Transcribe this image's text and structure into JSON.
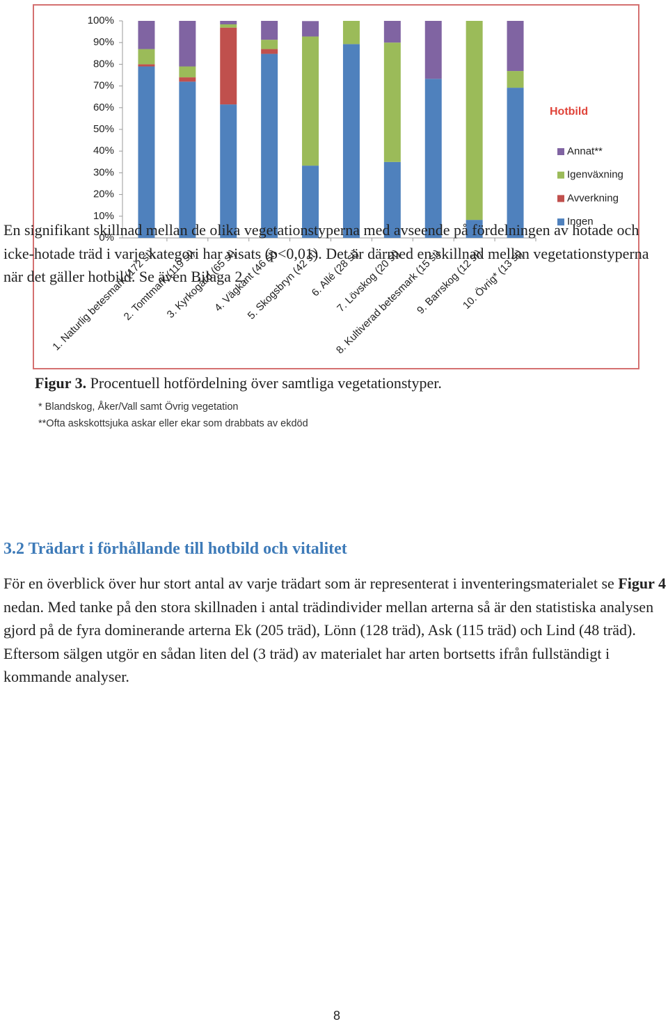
{
  "chart_data": {
    "type": "stacked_bar",
    "legend_title": "Hotbild",
    "legend": "right",
    "categories": [
      "1. Naturlig betesmark (172 st)",
      "2. Tomtmark (119 st)",
      "3. Kyrkogård (65 st)",
      "4. Vägkant (46 st)",
      "5. Skogsbryn (42 st)",
      "6. Allé (28 st)",
      "7. Lövskog (20 st)",
      "8. Kultiverad betesmark (15 st)",
      "9. Barrskog (12 st)",
      "10. Övrig* (13 st)"
    ],
    "series": [
      {
        "name": "Ingen",
        "color": "#4f81bd",
        "values": [
          79,
          72,
          61.5,
          84.8,
          33.3,
          89.3,
          35,
          73.3,
          8.3,
          69.2
        ]
      },
      {
        "name": "Avverkning",
        "color": "#c0504d",
        "values": [
          1,
          2,
          35.4,
          2.2,
          0,
          0,
          0,
          0,
          0,
          0
        ]
      },
      {
        "name": "Igenväxning",
        "color": "#9bbb59",
        "values": [
          7,
          5,
          1.5,
          4.3,
          59.5,
          10.7,
          55,
          0,
          91.7,
          7.7
        ]
      },
      {
        "name": "Annat**",
        "color": "#8064a2",
        "values": [
          13,
          21,
          1.6,
          8.7,
          7.1,
          0,
          10,
          26.7,
          0,
          23.1
        ]
      }
    ],
    "ylim": [
      0,
      100
    ],
    "yticks": [
      {
        "value": 0,
        "label": "0%"
      },
      {
        "value": 10,
        "label": "10%"
      },
      {
        "value": 20,
        "label": "20%"
      },
      {
        "value": 30,
        "label": "30%"
      },
      {
        "value": 40,
        "label": "40%"
      },
      {
        "value": 50,
        "label": "50%"
      },
      {
        "value": 60,
        "label": "60%"
      },
      {
        "value": 70,
        "label": "70%"
      },
      {
        "value": 80,
        "label": "80%"
      },
      {
        "value": 90,
        "label": "90%"
      },
      {
        "value": 100,
        "label": "100%"
      }
    ]
  },
  "caption": {
    "label": "Figur 3.",
    "text": "Procentuell hotfördelning över samtliga vegetationstyper."
  },
  "footnotes": [
    "* Blandskog, Åker/Vall samt Övrig vegetation",
    "**Ofta askskottsjuka askar eller ekar som drabbats av ekdöd"
  ],
  "paragraph1": "En signifikant skillnad mellan de olika vegetationstyperna med avseende på fördelningen av hotade och icke-hotade träd i varje kategori har visats (p<0,01). Det är därmed en skillnad mellan vegetationstyperna när det gäller hotbild. Se även Bilaga 2.",
  "heading": "3.2 Trädart i förhållande till hotbild och vitalitet",
  "paragraph2": {
    "before": "För en överblick över hur stort antal av varje trädart som är representerat i inventeringsmaterialet se",
    "ref": "Figur 4",
    "after": "nedan. Med tanke på den stora skillnaden i antal trädindivider mellan arterna så är den statistiska analysen gjord på de fyra dominerande arterna Ek (205 träd), Lönn (128 träd), Ask (115 träd) och Lind (48 träd). Eftersom sälgen utgör en sådan liten del (3 träd) av materialet har arten bortsetts ifrån fullständigt i kommande analyser."
  },
  "page_number": "8"
}
